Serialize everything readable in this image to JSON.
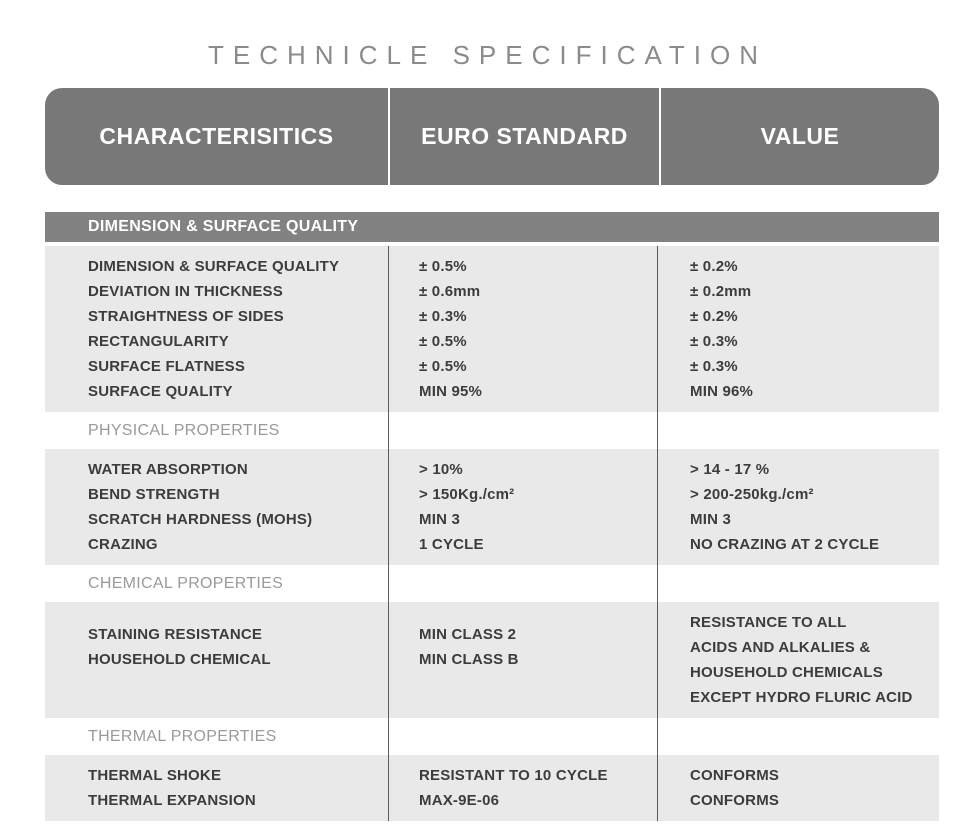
{
  "title": "TECHNICLE SPECIFICATION",
  "table": {
    "columns": [
      "CHARACTERISITICS",
      "EURO STANDARD",
      "VALUE"
    ],
    "sections": [
      {
        "label": "DIMENSION & SURFACE QUALITY",
        "label_style": "bar",
        "rows": {
          "characteristics": [
            "DIMENSION & SURFACE QUALITY",
            "DEVIATION IN THICKNESS",
            "STRAIGHTNESS OF SIDES",
            "RECTANGULARITY",
            "SURFACE FLATNESS",
            "SURFACE QUALITY"
          ],
          "euro_standard": [
            "± 0.5%",
            "± 0.6mm",
            "± 0.3%",
            "± 0.5%",
            "± 0.5%",
            "MIN 95%"
          ],
          "value": [
            "± 0.2%",
            "± 0.2mm",
            "± 0.2%",
            "± 0.3%",
            "± 0.3%",
            "MIN 96%"
          ]
        }
      },
      {
        "label": "PHYSICAL PROPERTIES",
        "label_style": "plain",
        "rows": {
          "characteristics": [
            "WATER ABSORPTION",
            "BEND STRENGTH",
            "SCRATCH HARDNESS (MOHS)",
            "CRAZING"
          ],
          "euro_standard": [
            "> 10%",
            "> 150Kg./cm²",
            "MIN 3",
            "1 CYCLE"
          ],
          "value": [
            "> 14 - 17 %",
            "> 200-250kg./cm²",
            "MIN 3",
            "NO CRAZING AT 2 CYCLE"
          ]
        }
      },
      {
        "label": "CHEMICAL PROPERTIES",
        "label_style": "plain",
        "rows": {
          "characteristics": [
            "STAINING RESISTANCE",
            "HOUSEHOLD CHEMICAL"
          ],
          "euro_standard": [
            "MIN CLASS 2",
            "MIN CLASS B"
          ],
          "value": [
            "RESISTANCE TO ALL",
            "ACIDS AND ALKALIES &",
            "HOUSEHOLD CHEMICALS",
            "EXCEPT HYDRO FLURIC ACID"
          ]
        }
      },
      {
        "label": "THERMAL PROPERTIES",
        "label_style": "plain",
        "rows": {
          "characteristics": [
            "THERMAL SHOKE",
            "THERMAL EXPANSION"
          ],
          "euro_standard": [
            "RESISTANT TO 10 CYCLE",
            "MAX-9E-06"
          ],
          "value": [
            "CONFORMS",
            "CONFORMS"
          ]
        }
      }
    ]
  },
  "colors": {
    "header_bg": "#787878",
    "section_bar_bg": "#828282",
    "row_block_bg": "#e9e9e9",
    "section_label_text": "#9a9a9a",
    "data_text": "#3c3c3c",
    "divider": "#5c5c5c",
    "title_text": "#8b8b8b"
  }
}
